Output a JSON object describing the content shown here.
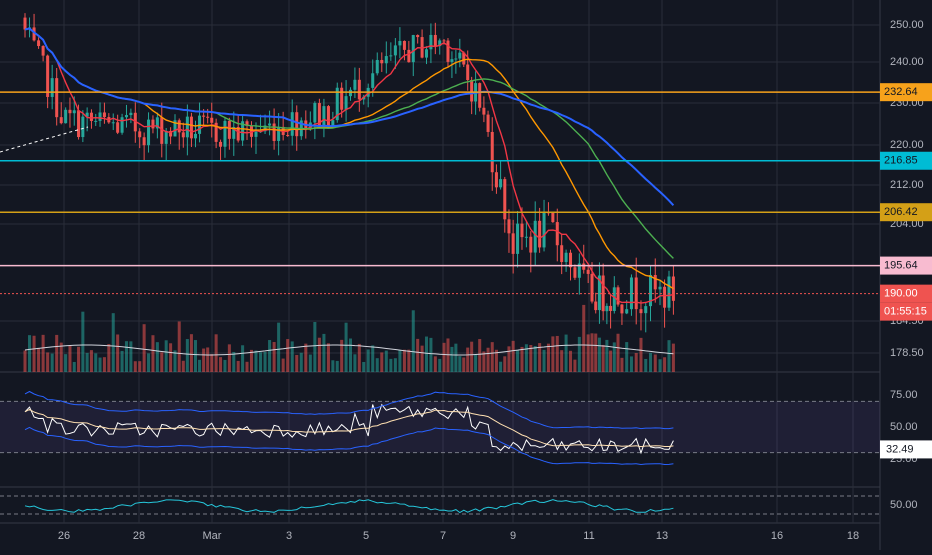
{
  "colors": {
    "background": "#131722",
    "grid": "#2a2e39",
    "up": "#26a69a",
    "down": "#ef5350",
    "text": "#b2b5be",
    "orange_level": "#f7a21b",
    "cyan_level": "#00bcd4",
    "gold_level": "#d4a017",
    "pink_level": "#f8bbd0",
    "red_level": "#ef5350",
    "ma_red": "#f23645",
    "ma_orange": "#ff9800",
    "ma_green": "#4caf50",
    "ma_blue": "#2962ff",
    "rsi_band_fill": "#7e57c2",
    "rsi_line": "#ffffff",
    "rsi_ma": "#ffe0b2",
    "osc_line": "#26c6da"
  },
  "chart_data": [
    {
      "type": "candlestick",
      "panel": "price",
      "y_ticks": [
        "250.00",
        "240.00",
        "230.00",
        "220.00",
        "212.00",
        "204.00",
        "184.50",
        "178.50"
      ],
      "y_scale_note": "nonlinear",
      "x_tick_labels": [
        "26",
        "28",
        "Mar",
        "3",
        "5",
        "7",
        "9",
        "11",
        "13",
        "16",
        "18"
      ],
      "horizontal_levels": [
        {
          "value": 232.64,
          "label": "232.64",
          "color_key": "orange_level"
        },
        {
          "value": 216.85,
          "label": "216.85",
          "color_key": "cyan_level"
        },
        {
          "value": 206.42,
          "label": "206.42",
          "color_key": "gold_level"
        },
        {
          "value": 195.64,
          "label": "195.64",
          "color_key": "pink_level"
        },
        {
          "value": 190.0,
          "label": "190.00",
          "color_key": "red_level"
        }
      ],
      "countdown_label": "01:55:15",
      "moving_averages": [
        "ma_red",
        "ma_orange",
        "ma_green",
        "ma_blue"
      ],
      "price_trend_summary": [
        {
          "date": "Feb 25",
          "close": 248
        },
        {
          "date": "Feb 26",
          "close": 226
        },
        {
          "date": "Feb 28",
          "close": 224
        },
        {
          "date": "Mar 2",
          "close": 223
        },
        {
          "date": "Mar 4",
          "close": 228
        },
        {
          "date": "Mar 6",
          "close": 243
        },
        {
          "date": "Mar 7",
          "close": 246
        },
        {
          "date": "Mar 8",
          "close": 232
        },
        {
          "date": "Mar 9",
          "close": 200
        },
        {
          "date": "Mar 10",
          "close": 203
        },
        {
          "date": "Mar 11",
          "close": 190
        }
      ]
    },
    {
      "type": "bar",
      "panel": "volume",
      "series_note": "volume histogram colored by candle direction"
    },
    {
      "type": "line",
      "panel": "rsi",
      "y_ticks": [
        "75.00",
        "50.00",
        "25.00"
      ],
      "current_value_label": "32.49",
      "band_upper": 70,
      "band_lower": 30
    },
    {
      "type": "line",
      "panel": "oscillator",
      "y_ticks": [
        "50.00"
      ]
    }
  ]
}
